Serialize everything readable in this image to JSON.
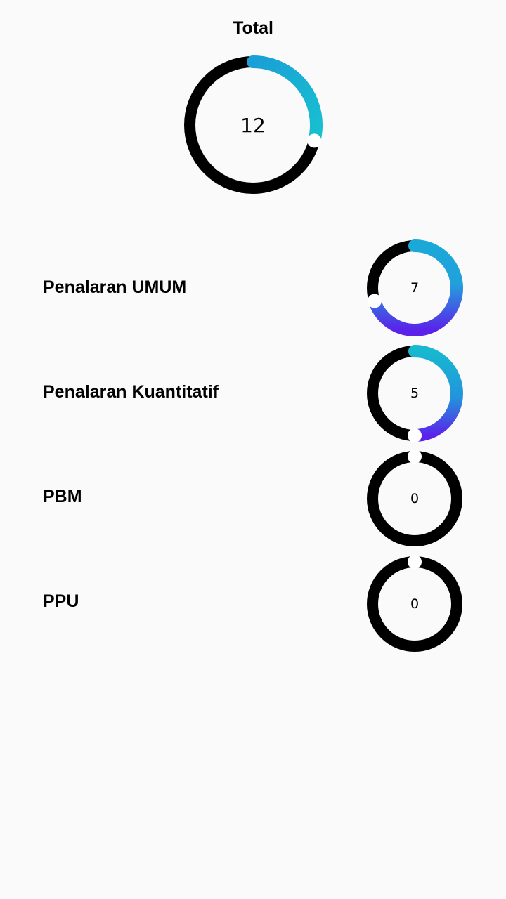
{
  "total": {
    "title": "Total",
    "value": "12",
    "progress": 0.29
  },
  "categories": [
    {
      "label": "Penalaran UMUM",
      "value": "7",
      "progress": 0.7
    },
    {
      "label": "Penalaran Kuantitatif",
      "value": "5",
      "progress": 0.5
    },
    {
      "label": "PBM",
      "value": "0",
      "progress": 0.0
    },
    {
      "label": "PPU",
      "value": "0",
      "progress": 0.0
    }
  ],
  "colors": {
    "track": "#000000",
    "gradient_start": "#1a9fd6",
    "gradient_mid": "#18b8d0",
    "gradient_end": "#5a22ea",
    "knob": "#ffffff",
    "background": "#fafafa"
  }
}
